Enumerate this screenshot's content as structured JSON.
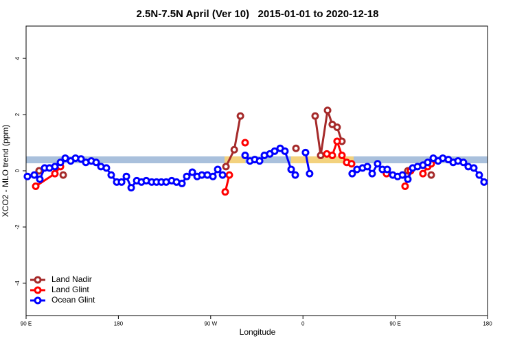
{
  "chart_data": {
    "type": "line",
    "title": "2.5N-7.5N April (Ver 10)   2015-01-01 to 2020-12-18",
    "x_label": "Longitude",
    "y_label": "XCO2 - MLO trend (ppm)",
    "xlim": [
      90,
      540
    ],
    "xticks": [
      {
        "value": 90,
        "label": "90 E"
      },
      {
        "value": 180,
        "label": "180"
      },
      {
        "value": 270,
        "label": "90 W"
      },
      {
        "value": 360,
        "label": "0"
      },
      {
        "value": 450,
        "label": "90 E"
      },
      {
        "value": 540,
        "label": "180"
      }
    ],
    "ylim": [
      -5.15,
      5.15
    ],
    "yticks": [
      -4,
      -2,
      0,
      2,
      4
    ],
    "legend": "bottom-left",
    "series": [
      {
        "name": "Land Nadir",
        "color": "#a52a2a",
        "x": [
          102.7,
          null,
          126.2,
          null,
          284.9,
          293,
          299,
          null,
          353.2,
          null,
          371.9,
          377.3,
          384,
          388.6,
          393.3,
          398,
          null,
          462.3,
          null,
          485.1
        ],
        "values": [
          0,
          null,
          -0.15,
          null,
          0.15,
          0.75,
          1.95,
          null,
          0.8,
          null,
          1.95,
          0.55,
          2.15,
          1.65,
          1.55,
          1.05,
          null,
          0,
          null,
          -0.15
        ]
      },
      {
        "name": "Land Glint",
        "color": "#ff0000",
        "x": [
          99.4,
          118.1,
          123.5,
          null,
          284.2,
          288.2,
          null,
          303.6,
          null,
          383.3,
          388.6,
          393.3,
          398,
          402.7,
          407.4,
          null,
          441.5,
          null,
          459.6,
          465,
          null,
          477,
          481.7,
          485.1
        ],
        "values": [
          -0.55,
          -0.1,
          0.15,
          null,
          -0.75,
          -0.15,
          null,
          1.0,
          null,
          0.6,
          0.55,
          1.05,
          0.55,
          0.3,
          0.25,
          null,
          -0.1,
          null,
          -0.55,
          0,
          null,
          -0.1,
          0.15,
          0.25
        ]
      },
      {
        "name": "Ocean Glint",
        "color": "#0000ff",
        "x": [
          91.3,
          98,
          103.4,
          108.1,
          112.8,
          118.1,
          123.5,
          128.2,
          133.5,
          138.2,
          143.6,
          148.3,
          153.6,
          158.3,
          163,
          168.3,
          173,
          178.4,
          183.1,
          187.8,
          192.5,
          197.9,
          202.5,
          207.2,
          212.5,
          217.2,
          221.9,
          226.6,
          232,
          236.7,
          242,
          246.7,
          252.1,
          256.8,
          261.4,
          266.8,
          272.2,
          276.9,
          281.6,
          null,
          303.6,
          308.3,
          313,
          317.7,
          322.4,
          327.7,
          332.4,
          337.8,
          342.4,
          348.5,
          352.5,
          null,
          362.5,
          366.5,
          null,
          408,
          412.7,
          418.1,
          422.8,
          427.5,
          432.8,
          437.5,
          442.2,
          447.6,
          452.3,
          457,
          462.3,
          467,
          471.7,
          477,
          481.7,
          487.1,
          491.8,
          496.4,
          501.8,
          506.5,
          511.2,
          516.5,
          521.2,
          526.6,
          531.9,
          536.6
        ],
        "values": [
          -0.2,
          -0.15,
          -0.3,
          0.1,
          0.1,
          0.15,
          0.3,
          0.45,
          0.35,
          0.45,
          0.42,
          0.3,
          0.35,
          0.3,
          0.15,
          0.1,
          -0.15,
          -0.4,
          -0.4,
          -0.2,
          -0.6,
          -0.35,
          -0.4,
          -0.35,
          -0.4,
          -0.4,
          -0.4,
          -0.4,
          -0.35,
          -0.4,
          -0.45,
          -0.2,
          -0.05,
          -0.2,
          -0.15,
          -0.15,
          -0.2,
          0.05,
          -0.15,
          null,
          0.55,
          0.35,
          0.4,
          0.35,
          0.55,
          0.6,
          0.7,
          0.8,
          0.7,
          0.05,
          -0.15,
          null,
          0.65,
          -0.1,
          null,
          -0.1,
          0.05,
          0.1,
          0.15,
          -0.1,
          0.25,
          0.05,
          0.05,
          -0.15,
          -0.2,
          -0.15,
          -0.3,
          0.1,
          0.15,
          0.2,
          0.3,
          0.45,
          0.35,
          0.45,
          0.4,
          0.3,
          0.35,
          0.3,
          0.15,
          0.1,
          -0.15,
          -0.4
        ]
      }
    ]
  }
}
